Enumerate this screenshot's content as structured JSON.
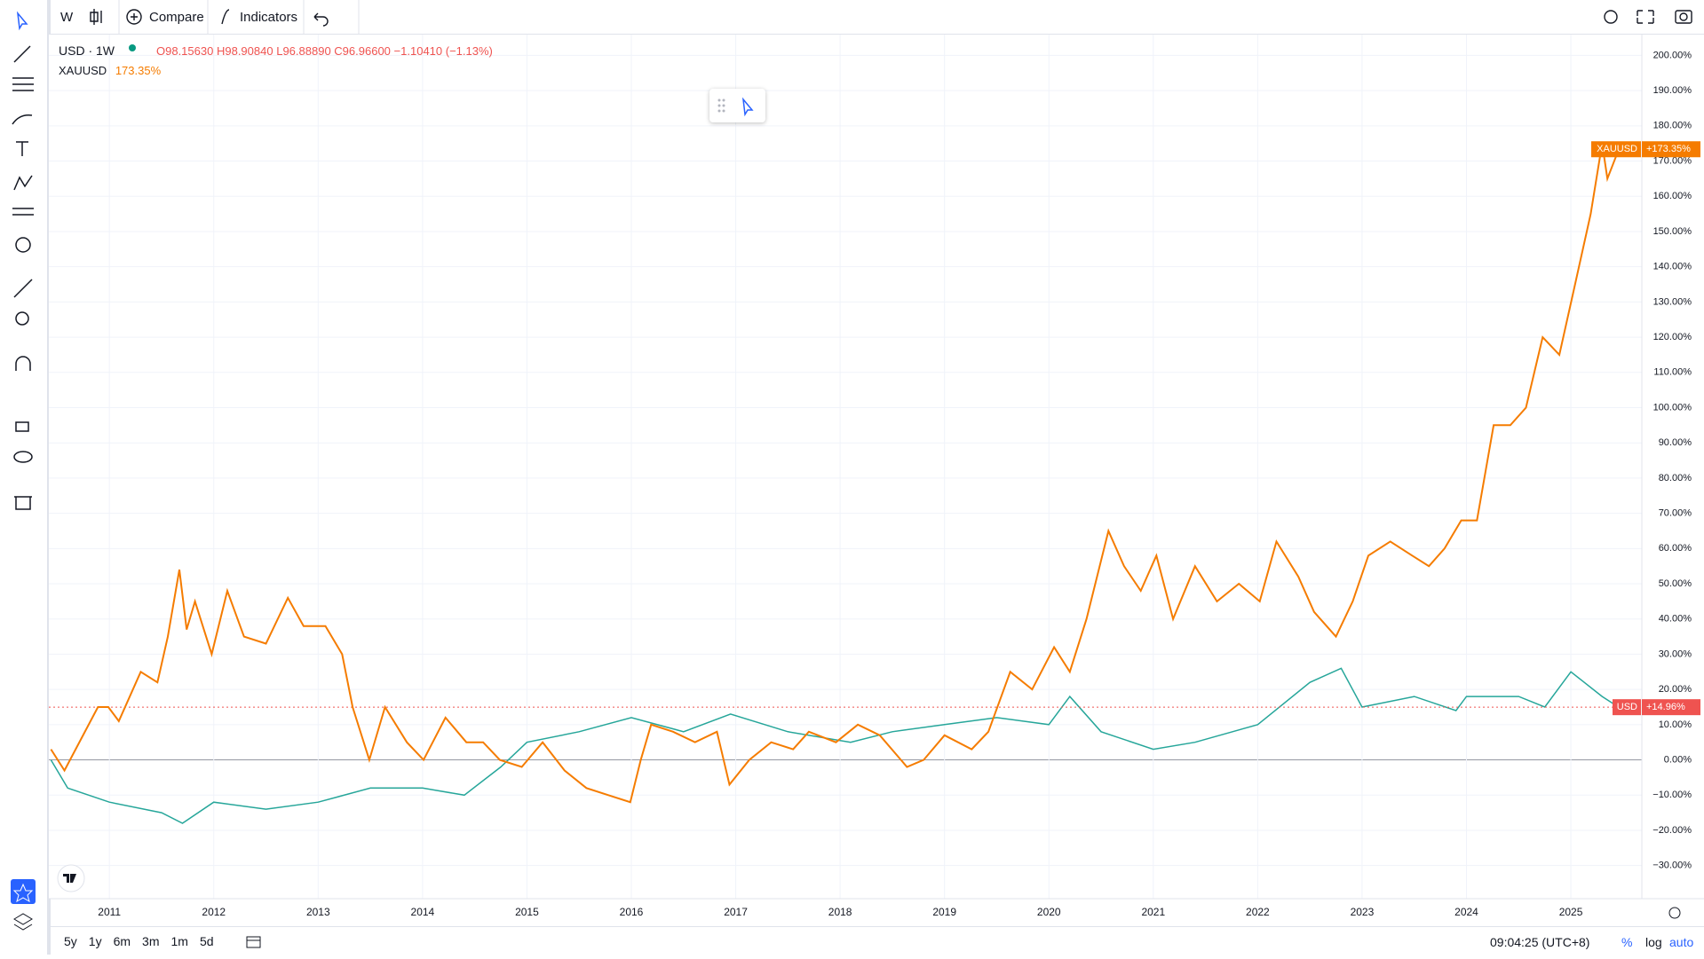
{
  "toolbar": {
    "interval": "W",
    "compare": "Compare",
    "indicators": "Indicators"
  },
  "legend": {
    "symbol": "USD · 1W",
    "open": "O98.15630",
    "high": "H98.90840",
    "low": "L96.88890",
    "close": "C96.96600",
    "change": "−1.10410 (−1.13%)"
  },
  "footer": {
    "ranges": [
      "5y",
      "1y",
      "6m",
      "3m",
      "1m",
      "5d"
    ],
    "time": "09:04:25 (UTC+8)",
    "percent": "%",
    "log": "log",
    "auto": "auto"
  },
  "chart_data": {
    "type": "line",
    "xlim": [
      2010.42,
      2025.68
    ],
    "ylim": [
      -39.4,
      205.9
    ],
    "xticks": [
      2011,
      2012,
      2013,
      2014,
      2015,
      2016,
      2017,
      2018,
      2019,
      2020,
      2021,
      2022,
      2023,
      2024,
      2025
    ],
    "yticks": [
      {
        "value": -30,
        "label": "−30.00%"
      },
      {
        "value": -20,
        "label": "−20.00%"
      },
      {
        "value": -10,
        "label": "−10.00%"
      },
      {
        "value": 0,
        "label": "0.00%"
      },
      {
        "value": 10,
        "label": "10.00%"
      },
      {
        "value": 20,
        "label": "20.00%"
      },
      {
        "value": 30,
        "label": "30.00%"
      },
      {
        "value": 40,
        "label": "40.00%"
      },
      {
        "value": 50,
        "label": "50.00%"
      },
      {
        "value": 60,
        "label": "60.00%"
      },
      {
        "value": 70,
        "label": "70.00%"
      },
      {
        "value": 80,
        "label": "80.00%"
      },
      {
        "value": 90,
        "label": "90.00%"
      },
      {
        "value": 100,
        "label": "100.00%"
      },
      {
        "value": 110,
        "label": "110.00%"
      },
      {
        "value": 120,
        "label": "120.00%"
      },
      {
        "value": 130,
        "label": "130.00%"
      },
      {
        "value": 140,
        "label": "140.00%"
      },
      {
        "value": 150,
        "label": "150.00%"
      },
      {
        "value": 160,
        "label": "160.00%"
      },
      {
        "value": 170,
        "label": "170.00%"
      },
      {
        "value": 180,
        "label": "180.00%"
      },
      {
        "value": 190,
        "label": "190.00%"
      },
      {
        "value": 200,
        "label": "200.00%"
      }
    ],
    "grid": true,
    "series": [
      {
        "name": "XAUUSD",
        "color": "#f57c00",
        "legend_value": "173.35%",
        "last_label": "+173.35%",
        "x": [
          2010.44,
          2010.57,
          2010.89,
          2010.99,
          2011.09,
          2011.3,
          2011.46,
          2011.56,
          2011.67,
          2011.74,
          2011.82,
          2011.98,
          2012.13,
          2012.29,
          2012.5,
          2012.71,
          2012.86,
          2013.07,
          2013.23,
          2013.33,
          2013.49,
          2013.64,
          2013.85,
          2014.01,
          2014.22,
          2014.42,
          2014.58,
          2014.74,
          2014.95,
          2015.15,
          2015.36,
          2015.57,
          2015.78,
          2015.99,
          2016.09,
          2016.19,
          2016.4,
          2016.61,
          2016.82,
          2016.94,
          2017.13,
          2017.34,
          2017.55,
          2017.7,
          2017.96,
          2018.17,
          2018.38,
          2018.64,
          2018.8,
          2019.0,
          2019.26,
          2019.42,
          2019.63,
          2019.84,
          2020.05,
          2020.2,
          2020.36,
          2020.57,
          2020.72,
          2020.88,
          2021.03,
          2021.19,
          2021.4,
          2021.61,
          2021.82,
          2022.02,
          2022.18,
          2022.39,
          2022.54,
          2022.75,
          2022.91,
          2023.06,
          2023.27,
          2023.48,
          2023.64,
          2023.79,
          2023.95,
          2024.1,
          2024.26,
          2024.42,
          2024.57,
          2024.73,
          2024.89,
          2025.04,
          2025.19,
          2025.3,
          2025.35,
          2025.46
        ],
        "values": [
          3,
          -3,
          15,
          15,
          11,
          25,
          22,
          35,
          54,
          37,
          45,
          30,
          48,
          35,
          33,
          46,
          38,
          38,
          30,
          15,
          0,
          15,
          5,
          0,
          12,
          5,
          5,
          0,
          -2,
          5,
          -3,
          -8,
          -10,
          -12,
          0,
          10,
          8,
          5,
          8,
          -7,
          0,
          5,
          3,
          8,
          5,
          10,
          7,
          -2,
          0,
          7,
          3,
          8,
          25,
          20,
          32,
          25,
          40,
          65,
          55,
          48,
          58,
          40,
          55,
          45,
          50,
          45,
          62,
          52,
          42,
          35,
          45,
          58,
          62,
          58,
          55,
          60,
          68,
          68,
          95,
          95,
          100,
          120,
          115,
          135,
          155,
          175,
          165,
          173.35
        ]
      },
      {
        "name": "USD",
        "color": "#26a69a",
        "last_label": "+14.96%",
        "x": [
          2010.44,
          2010.6,
          2011.0,
          2011.5,
          2011.7,
          2012.0,
          2012.5,
          2013.0,
          2013.5,
          2014.0,
          2014.4,
          2014.75,
          2015.0,
          2015.5,
          2016.0,
          2016.5,
          2016.95,
          2017.5,
          2018.1,
          2018.5,
          2019.0,
          2019.5,
          2020.0,
          2020.2,
          2020.5,
          2021.0,
          2021.4,
          2022.0,
          2022.5,
          2022.8,
          2023.0,
          2023.5,
          2023.9,
          2024.0,
          2024.5,
          2024.75,
          2025.0,
          2025.3,
          2025.46
        ],
        "values": [
          0,
          -8,
          -12,
          -15,
          -18,
          -12,
          -14,
          -12,
          -8,
          -8,
          -10,
          -2,
          5,
          8,
          12,
          8,
          13,
          8,
          5,
          8,
          10,
          12,
          10,
          18,
          8,
          3,
          5,
          10,
          22,
          26,
          15,
          18,
          14,
          18,
          18,
          15,
          25,
          18,
          14.96
        ]
      }
    ]
  }
}
